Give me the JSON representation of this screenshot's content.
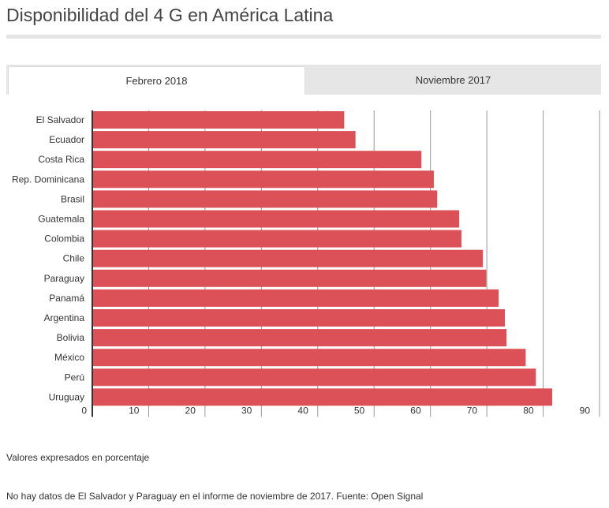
{
  "title": "Disponibilidad del 4 G en América Latina",
  "tabs": [
    {
      "label": "Febrero 2018",
      "active": true
    },
    {
      "label": "Noviembre 2017",
      "active": false
    }
  ],
  "notes": {
    "units": "Valores expresados en porcentaje",
    "source": "No hay datos de El Salvador y Paraguay en el informe de noviembre de 2017. Fuente: Open Signal"
  },
  "chart_data": {
    "type": "bar",
    "orientation": "horizontal",
    "categories": [
      "El Salvador",
      "Ecuador",
      "Costa Rica",
      "Rep. Dominicana",
      "Brasil",
      "Guatemala",
      "Colombia",
      "Chile",
      "Paraguay",
      "Panamá",
      "Argentina",
      "Bolivia",
      "México",
      "Perú",
      "Uruguay"
    ],
    "values": [
      44.7,
      46.7,
      58.4,
      60.6,
      61.2,
      65.1,
      65.5,
      69.3,
      69.9,
      72.1,
      73.2,
      73.5,
      76.9,
      78.7,
      81.6
    ],
    "xlim": [
      0,
      90
    ],
    "xticks": [
      "0",
      "10",
      "20",
      "30",
      "40",
      "50",
      "60",
      "70",
      "80",
      "90"
    ],
    "grid": true,
    "color": "#dc5157"
  }
}
